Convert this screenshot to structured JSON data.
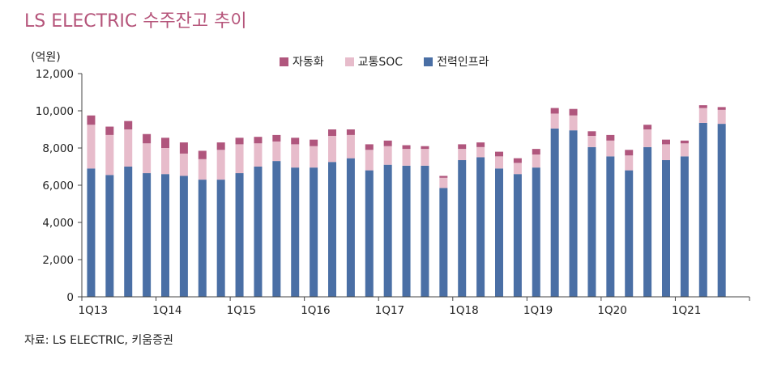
{
  "chart_data": {
    "type": "bar",
    "stacked": true,
    "title": "LS ELECTRIC  수주잔고 추이",
    "unit_label": "(억원)",
    "source": "자료: LS ELECTRIC,  키움증권",
    "ylim": [
      0,
      12000
    ],
    "yticks": [
      "0",
      "2,000",
      "4,000",
      "6,000",
      "8,000",
      "10,000",
      "12,000"
    ],
    "ytick_values": [
      0,
      2000,
      4000,
      6000,
      8000,
      10000,
      12000
    ],
    "xtick_labels": [
      "1Q13",
      "1Q14",
      "1Q15",
      "1Q16",
      "1Q17",
      "1Q18",
      "1Q19",
      "1Q20",
      "1Q21"
    ],
    "categories": [
      "1Q13",
      "2Q13",
      "3Q13",
      "4Q13",
      "1Q14",
      "2Q14",
      "3Q14",
      "4Q14",
      "1Q15",
      "2Q15",
      "3Q15",
      "4Q15",
      "1Q16",
      "2Q16",
      "3Q16",
      "4Q16",
      "1Q17",
      "2Q17",
      "3Q17",
      "4Q17",
      "1Q18",
      "2Q18",
      "3Q18",
      "4Q18",
      "1Q19",
      "2Q19",
      "3Q19",
      "4Q19",
      "1Q20",
      "2Q20",
      "3Q20",
      "4Q20",
      "1Q21",
      "2Q21",
      "3Q21",
      "4Q21"
    ],
    "series": [
      {
        "name": "전력인프라",
        "color": "#4a6fa5",
        "values": [
          6900,
          6550,
          7000,
          6650,
          6600,
          6500,
          6300,
          6300,
          6650,
          7000,
          7300,
          6950,
          6950,
          7250,
          7450,
          6800,
          7100,
          7050,
          7050,
          5850,
          7350,
          7500,
          6900,
          6600,
          6950,
          9050,
          8950,
          8050,
          7550,
          6800,
          8050,
          7350,
          7550,
          9350,
          9300,
          0
        ]
      },
      {
        "name": "교통SOC",
        "color": "#e7bccb",
        "values": [
          2350,
          2150,
          2000,
          1600,
          1400,
          1200,
          1100,
          1600,
          1550,
          1250,
          1050,
          1250,
          1150,
          1400,
          1250,
          1100,
          1000,
          900,
          900,
          550,
          600,
          550,
          650,
          600,
          700,
          800,
          800,
          600,
          850,
          800,
          950,
          850,
          700,
          800,
          750,
          0
        ]
      },
      {
        "name": "자동화",
        "color": "#b0567d",
        "values": [
          500,
          450,
          450,
          500,
          550,
          600,
          450,
          400,
          350,
          350,
          350,
          350,
          350,
          350,
          300,
          300,
          300,
          200,
          150,
          100,
          250,
          250,
          250,
          250,
          300,
          300,
          350,
          250,
          300,
          300,
          250,
          250,
          150,
          150,
          150,
          0
        ]
      }
    ]
  }
}
